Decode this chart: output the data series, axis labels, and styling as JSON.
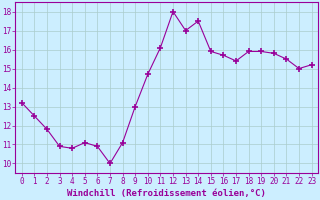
{
  "x": [
    0,
    1,
    2,
    3,
    4,
    5,
    6,
    7,
    8,
    9,
    10,
    11,
    12,
    13,
    14,
    15,
    16,
    17,
    18,
    19,
    20,
    21,
    22,
    23
  ],
  "y": [
    13.2,
    12.5,
    11.8,
    10.9,
    10.8,
    11.1,
    10.9,
    10.0,
    11.1,
    13.0,
    14.7,
    16.1,
    18.0,
    17.0,
    17.5,
    15.9,
    15.7,
    15.4,
    15.9,
    15.9,
    15.8,
    15.5,
    15.0,
    15.2
  ],
  "line_color": "#990099",
  "marker": "+",
  "marker_size": 4,
  "marker_lw": 1.2,
  "bg_color": "#cceeff",
  "grid_color": "#aacccc",
  "xlabel": "Windchill (Refroidissement éolien,°C)",
  "xlabel_color": "#990099",
  "tick_color": "#990099",
  "spine_color": "#990099",
  "ylim": [
    9.5,
    18.5
  ],
  "xlim": [
    -0.5,
    23.5
  ],
  "yticks": [
    10,
    11,
    12,
    13,
    14,
    15,
    16,
    17,
    18
  ],
  "xticks": [
    0,
    1,
    2,
    3,
    4,
    5,
    6,
    7,
    8,
    9,
    10,
    11,
    12,
    13,
    14,
    15,
    16,
    17,
    18,
    19,
    20,
    21,
    22,
    23
  ],
  "xtick_labels": [
    "0",
    "1",
    "2",
    "3",
    "4",
    "5",
    "6",
    "7",
    "8",
    "9",
    "10",
    "11",
    "12",
    "13",
    "14",
    "15",
    "16",
    "17",
    "18",
    "19",
    "20",
    "21",
    "22",
    "23"
  ],
  "tick_fontsize": 5.5,
  "xlabel_fontsize": 6.5
}
